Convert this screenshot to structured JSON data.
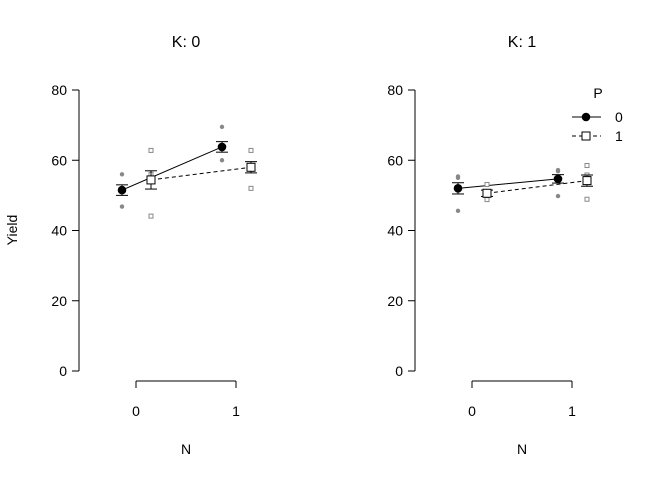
{
  "chart_data": {
    "type": "scatter",
    "ylabel": "Yield",
    "xlabel": "N",
    "ylim": [
      0,
      80
    ],
    "y_ticks": [
      "0",
      "20",
      "40",
      "60",
      "80"
    ],
    "x_categories": [
      "0",
      "1"
    ],
    "legend": {
      "title": "P",
      "entries": [
        {
          "label": "0",
          "marker": "filled-circle",
          "line": "solid"
        },
        {
          "label": "1",
          "marker": "open-square",
          "line": "dashed"
        }
      ],
      "placement": "top-right of right panel"
    },
    "colors": {
      "points": "#888888",
      "lines": "#000000"
    },
    "panels": [
      {
        "title": "K: 0",
        "series": [
          {
            "name": "0",
            "means": [
              51.5,
              63.8
            ],
            "errors": [
              1.5,
              1.5
            ],
            "raw": [
              [
                46.8,
                51.5,
                56.0
              ],
              [
                60.0,
                63.8,
                69.5
              ]
            ]
          },
          {
            "name": "1",
            "means": [
              54.4,
              58.0
            ],
            "errors": [
              2.6,
              1.6
            ],
            "raw": [
              [
                44.1,
                56.0,
                62.8
              ],
              [
                52.0,
                58.0,
                62.8
              ]
            ]
          }
        ]
      },
      {
        "title": "K: 1",
        "series": [
          {
            "name": "0",
            "means": [
              52.0,
              54.7
            ],
            "errors": [
              1.6,
              1.2
            ],
            "raw": [
              [
                45.6,
                55.0,
                55.4
              ],
              [
                49.8,
                56.9,
                57.2
              ]
            ]
          },
          {
            "name": "1",
            "means": [
              50.6,
              54.2
            ],
            "errors": [
              0.9,
              1.6
            ],
            "raw": [
              [
                48.8,
                51.0,
                53.1
              ],
              [
                48.9,
                55.8,
                58.5
              ]
            ]
          }
        ]
      }
    ]
  }
}
